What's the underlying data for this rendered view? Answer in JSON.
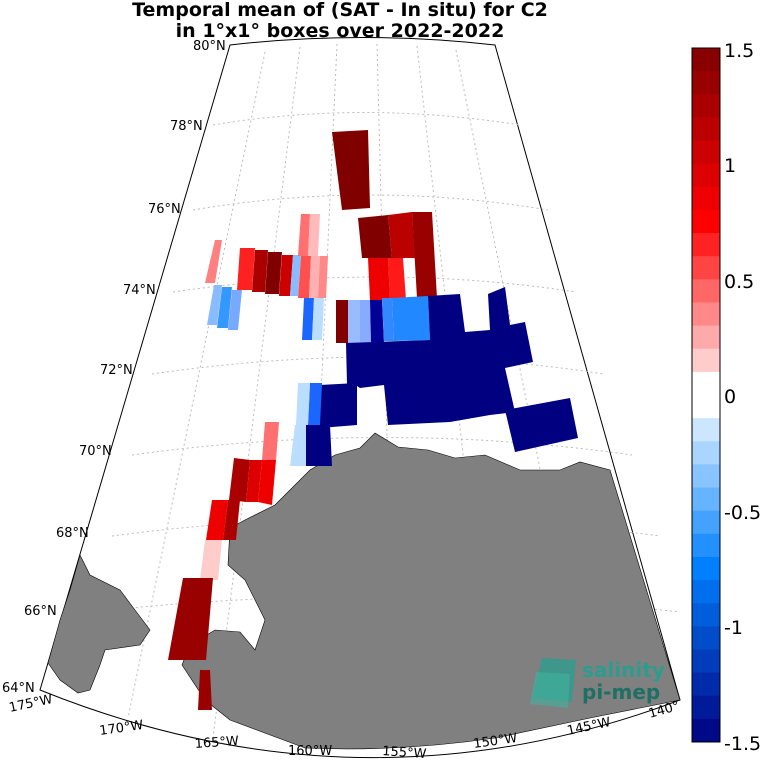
{
  "title": {
    "line1": "Temporal mean of (SAT - In situ) for C2",
    "line2": "in 1°x1° boxes over 2022-2022"
  },
  "lat_labels": [
    "80°N",
    "78°N",
    "76°N",
    "74°N",
    "72°N",
    "70°N",
    "68°N",
    "66°N",
    "64°N"
  ],
  "lon_labels": [
    "175°W",
    "170°W",
    "165°W",
    "160°W",
    "155°W",
    "150°W",
    "145°W",
    "140°"
  ],
  "colorbar": {
    "ticks": [
      "1.5",
      "1",
      "0.5",
      "0",
      "-0.5",
      "-1",
      "-1.5"
    ],
    "range": [
      -1.5,
      1.5
    ]
  },
  "logo": {
    "line1": "salinity",
    "line2": "pi-mep"
  },
  "colors": {
    "land": "#808080",
    "dark_blue": "#000080",
    "dark_red": "#800000",
    "logo": "#2a9d8f"
  }
}
